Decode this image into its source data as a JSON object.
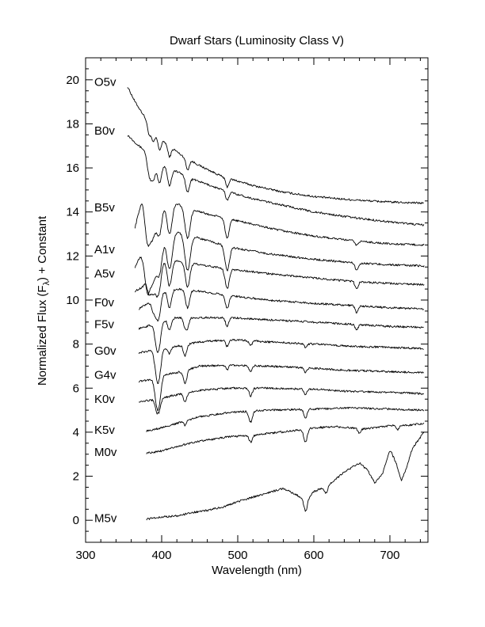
{
  "chart_data": {
    "type": "line",
    "title": "Dwarf Stars (Luminosity Class V)",
    "xlabel": "Wavelength (nm)",
    "ylabel_parts": [
      "Normalized Flux (F",
      "λ",
      ") + Constant"
    ],
    "xlim": [
      300,
      750
    ],
    "ylim": [
      -1,
      21
    ],
    "x_ticks": [
      300,
      400,
      500,
      600,
      700
    ],
    "x_tick_labels": [
      "300",
      "400",
      "500",
      "600",
      "700"
    ],
    "y_ticks": [
      0,
      2,
      4,
      6,
      8,
      10,
      12,
      14,
      16,
      18,
      20
    ],
    "y_tick_labels": [
      "0",
      "2",
      "4",
      "6",
      "8",
      "10",
      "12",
      "14",
      "16",
      "18",
      "20"
    ],
    "grid": false,
    "legend": "none",
    "series": [
      {
        "name": "O5v",
        "label_y": 19.9,
        "color": "#000000",
        "points": [
          [
            355,
            19.7
          ],
          [
            365,
            19.0
          ],
          [
            380,
            18.2
          ],
          [
            400,
            17.3
          ],
          [
            425,
            16.6
          ],
          [
            450,
            16.1
          ],
          [
            480,
            15.6
          ],
          [
            520,
            15.2
          ],
          [
            560,
            14.9
          ],
          [
            600,
            14.7
          ],
          [
            650,
            14.55
          ],
          [
            700,
            14.45
          ],
          [
            745,
            14.4
          ]
        ],
        "lines": [
          [
            383.5,
            0.5
          ],
          [
            388.9,
            0.6
          ],
          [
            397.0,
            0.6
          ],
          [
            410.2,
            0.5
          ],
          [
            434.0,
            0.5
          ],
          [
            486.1,
            0.4
          ]
        ]
      },
      {
        "name": "B0v",
        "label_y": 17.7,
        "color": "#000000",
        "points": [
          [
            355,
            17.5
          ],
          [
            370,
            17.0
          ],
          [
            390,
            16.5
          ],
          [
            410,
            16.0
          ],
          [
            440,
            15.5
          ],
          [
            480,
            15.0
          ],
          [
            520,
            14.6
          ],
          [
            560,
            14.3
          ],
          [
            600,
            14.0
          ],
          [
            650,
            13.75
          ],
          [
            700,
            13.55
          ],
          [
            745,
            13.4
          ]
        ],
        "lines": [
          [
            383.5,
            0.9
          ],
          [
            388.9,
            1.0
          ],
          [
            397.0,
            1.0
          ],
          [
            410.2,
            0.8
          ],
          [
            434.0,
            0.7
          ],
          [
            486.1,
            0.4
          ]
        ]
      },
      {
        "name": "B5v",
        "label_y": 14.2,
        "color": "#000000",
        "points": [
          [
            365,
            13.3
          ],
          [
            375,
            14.7
          ],
          [
            385,
            15.0
          ],
          [
            400,
            14.8
          ],
          [
            425,
            14.3
          ],
          [
            460,
            13.9
          ],
          [
            500,
            13.6
          ],
          [
            550,
            13.2
          ],
          [
            600,
            12.9
          ],
          [
            650,
            12.7
          ],
          [
            700,
            12.55
          ],
          [
            745,
            12.5
          ]
        ],
        "lines": [
          [
            379.8,
            1.2
          ],
          [
            383.5,
            1.4
          ],
          [
            388.9,
            1.6
          ],
          [
            397.0,
            1.8
          ],
          [
            410.2,
            1.6
          ],
          [
            434.0,
            1.4
          ],
          [
            486.1,
            0.9
          ],
          [
            656.3,
            0.2
          ]
        ]
      },
      {
        "name": "A1v",
        "label_y": 12.3,
        "color": "#000000",
        "points": [
          [
            365,
            11.5
          ],
          [
            375,
            12.2
          ],
          [
            385,
            13.3
          ],
          [
            400,
            13.3
          ],
          [
            420,
            13.1
          ],
          [
            450,
            12.8
          ],
          [
            490,
            12.4
          ],
          [
            540,
            12.1
          ],
          [
            600,
            11.85
          ],
          [
            650,
            11.7
          ],
          [
            700,
            11.6
          ],
          [
            745,
            11.55
          ]
        ],
        "lines": [
          [
            379.8,
            1.3
          ],
          [
            383.5,
            1.5
          ],
          [
            388.9,
            1.8
          ],
          [
            397.0,
            2.0
          ],
          [
            410.2,
            1.8
          ],
          [
            434.0,
            1.6
          ],
          [
            486.1,
            1.1
          ],
          [
            656.3,
            0.35
          ]
        ]
      },
      {
        "name": "A5v",
        "label_y": 11.2,
        "color": "#000000",
        "points": [
          [
            365,
            10.4
          ],
          [
            375,
            10.6
          ],
          [
            385,
            11.3
          ],
          [
            400,
            11.9
          ],
          [
            420,
            11.8
          ],
          [
            450,
            11.6
          ],
          [
            490,
            11.4
          ],
          [
            540,
            11.2
          ],
          [
            600,
            11.0
          ],
          [
            650,
            10.85
          ],
          [
            700,
            10.75
          ],
          [
            745,
            10.7
          ]
        ],
        "lines": [
          [
            383.5,
            0.8
          ],
          [
            388.9,
            1.0
          ],
          [
            393.4,
            0.6
          ],
          [
            397.0,
            1.2
          ],
          [
            410.2,
            1.2
          ],
          [
            434.0,
            1.1
          ],
          [
            486.1,
            0.9
          ],
          [
            656.3,
            0.35
          ]
        ]
      },
      {
        "name": "F0v",
        "label_y": 9.9,
        "color": "#000000",
        "points": [
          [
            370,
            9.6
          ],
          [
            385,
            9.9
          ],
          [
            400,
            10.4
          ],
          [
            420,
            10.5
          ],
          [
            450,
            10.4
          ],
          [
            490,
            10.2
          ],
          [
            540,
            10.0
          ],
          [
            600,
            9.85
          ],
          [
            650,
            9.75
          ],
          [
            700,
            9.65
          ],
          [
            745,
            9.6
          ]
        ],
        "lines": [
          [
            388.9,
            0.5
          ],
          [
            393.4,
            0.7
          ],
          [
            397.0,
            0.8
          ],
          [
            410.2,
            0.8
          ],
          [
            434.0,
            0.8
          ],
          [
            486.1,
            0.6
          ],
          [
            656.3,
            0.3
          ]
        ]
      },
      {
        "name": "F5v",
        "label_y": 8.9,
        "color": "#000000",
        "points": [
          [
            370,
            8.7
          ],
          [
            385,
            8.85
          ],
          [
            400,
            9.05
          ],
          [
            420,
            9.2
          ],
          [
            450,
            9.2
          ],
          [
            490,
            9.2
          ],
          [
            540,
            9.1
          ],
          [
            600,
            9.0
          ],
          [
            650,
            8.9
          ],
          [
            700,
            8.8
          ],
          [
            745,
            8.75
          ]
        ],
        "lines": [
          [
            393.4,
            0.9
          ],
          [
            397.0,
            0.8
          ],
          [
            410.2,
            0.5
          ],
          [
            430.8,
            0.4
          ],
          [
            434.0,
            0.4
          ],
          [
            486.1,
            0.4
          ],
          [
            656.3,
            0.25
          ]
        ]
      },
      {
        "name": "G0v",
        "label_y": 7.7,
        "color": "#000000",
        "points": [
          [
            370,
            7.6
          ],
          [
            385,
            7.7
          ],
          [
            400,
            7.8
          ],
          [
            420,
            7.9
          ],
          [
            450,
            8.1
          ],
          [
            490,
            8.2
          ],
          [
            540,
            8.1
          ],
          [
            600,
            8.0
          ],
          [
            650,
            7.9
          ],
          [
            700,
            7.85
          ],
          [
            745,
            7.8
          ]
        ],
        "lines": [
          [
            393.4,
            1.0
          ],
          [
            397.0,
            0.9
          ],
          [
            410.2,
            0.3
          ],
          [
            430.8,
            0.5
          ],
          [
            486.1,
            0.3
          ],
          [
            517.0,
            0.2
          ],
          [
            589.0,
            0.15
          ]
        ]
      },
      {
        "name": "G4v",
        "label_y": 6.6,
        "color": "#000000",
        "points": [
          [
            370,
            6.3
          ],
          [
            385,
            6.4
          ],
          [
            400,
            6.6
          ],
          [
            420,
            6.7
          ],
          [
            450,
            7.0
          ],
          [
            490,
            7.05
          ],
          [
            540,
            7.0
          ],
          [
            600,
            6.9
          ],
          [
            650,
            6.8
          ],
          [
            700,
            6.75
          ],
          [
            745,
            6.7
          ]
        ],
        "lines": [
          [
            393.4,
            1.0
          ],
          [
            397.0,
            0.9
          ],
          [
            430.8,
            0.6
          ],
          [
            486.1,
            0.2
          ],
          [
            517.0,
            0.3
          ],
          [
            589.0,
            0.2
          ]
        ]
      },
      {
        "name": "K0v",
        "label_y": 5.5,
        "color": "#000000",
        "points": [
          [
            370,
            5.4
          ],
          [
            385,
            5.45
          ],
          [
            400,
            5.55
          ],
          [
            420,
            5.7
          ],
          [
            450,
            5.9
          ],
          [
            490,
            6.0
          ],
          [
            540,
            6.0
          ],
          [
            600,
            5.95
          ],
          [
            650,
            5.85
          ],
          [
            700,
            5.8
          ],
          [
            745,
            5.75
          ]
        ],
        "lines": [
          [
            393.4,
            0.5
          ],
          [
            397.0,
            0.45
          ],
          [
            430.8,
            0.4
          ],
          [
            517.0,
            0.35
          ],
          [
            589.0,
            0.25
          ]
        ]
      },
      {
        "name": "K5v",
        "label_y": 4.1,
        "color": "#000000",
        "points": [
          [
            380,
            4.05
          ],
          [
            400,
            4.2
          ],
          [
            420,
            4.4
          ],
          [
            450,
            4.7
          ],
          [
            490,
            4.9
          ],
          [
            540,
            5.0
          ],
          [
            600,
            5.05
          ],
          [
            650,
            5.1
          ],
          [
            700,
            5.05
          ],
          [
            745,
            5.0
          ]
        ],
        "lines": [
          [
            430.8,
            0.2
          ],
          [
            517.0,
            0.5
          ],
          [
            589.0,
            0.4
          ]
        ]
      },
      {
        "name": "M0v",
        "label_y": 3.1,
        "color": "#000000",
        "points": [
          [
            380,
            3.05
          ],
          [
            400,
            3.15
          ],
          [
            420,
            3.35
          ],
          [
            450,
            3.6
          ],
          [
            490,
            3.8
          ],
          [
            520,
            3.85
          ],
          [
            540,
            3.95
          ],
          [
            570,
            4.05
          ],
          [
            600,
            4.2
          ],
          [
            630,
            4.25
          ],
          [
            650,
            4.2
          ],
          [
            670,
            4.15
          ],
          [
            700,
            4.3
          ],
          [
            720,
            4.3
          ],
          [
            745,
            4.4
          ]
        ],
        "lines": [
          [
            517.0,
            0.3
          ],
          [
            589.0,
            0.6
          ],
          [
            660.0,
            0.25
          ],
          [
            710.0,
            0.2
          ]
        ]
      },
      {
        "name": "M5v",
        "label_y": 0.1,
        "color": "#000000",
        "points": [
          [
            380,
            0.05
          ],
          [
            400,
            0.15
          ],
          [
            420,
            0.2
          ],
          [
            440,
            0.35
          ],
          [
            460,
            0.45
          ],
          [
            480,
            0.6
          ],
          [
            500,
            0.85
          ],
          [
            520,
            1.05
          ],
          [
            540,
            1.25
          ],
          [
            560,
            1.45
          ],
          [
            580,
            1.1
          ],
          [
            590,
            0.9
          ],
          [
            600,
            1.3
          ],
          [
            620,
            1.6
          ],
          [
            640,
            2.2
          ],
          [
            660,
            2.6
          ],
          [
            670,
            2.3
          ],
          [
            680,
            1.7
          ],
          [
            690,
            2.1
          ],
          [
            700,
            3.2
          ],
          [
            705,
            3.4
          ],
          [
            710,
            2.4
          ],
          [
            715,
            1.8
          ],
          [
            720,
            2.2
          ],
          [
            730,
            3.3
          ],
          [
            745,
            4.0
          ]
        ],
        "lines": [
          [
            589.0,
            0.5
          ],
          [
            616.0,
            0.3
          ],
          [
            705.0,
            0.5
          ]
        ]
      }
    ]
  }
}
